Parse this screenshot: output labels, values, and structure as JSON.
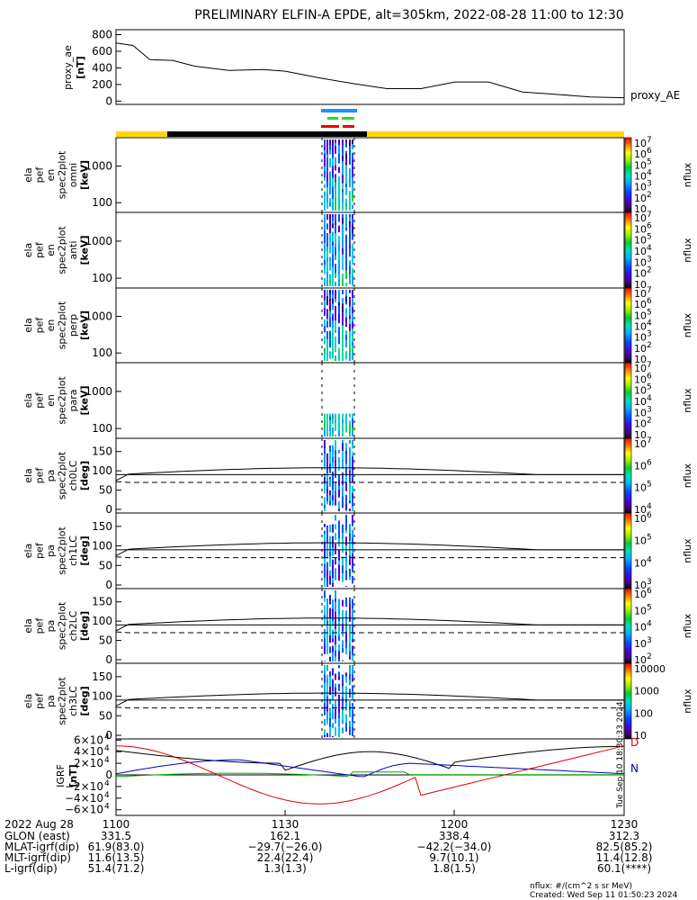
{
  "title": "PRELIMINARY ELFIN-A EPDE, alt=305km, 2022-08-28 11:00 to 12:30",
  "colors": {
    "sunlit": "#ffd700",
    "shadow": "#000000",
    "bar_blue": "#1e90ff",
    "bar_green": "#22dd22",
    "bar_red": "#ee0000"
  },
  "chart_data": [
    {
      "type": "line",
      "name": "proxy_ae",
      "ylabel": [
        "proxy_ae",
        "[nT]"
      ],
      "ylim": [
        -40,
        860
      ],
      "yticks": [
        "800",
        "600",
        "400",
        "200",
        "0"
      ],
      "x_minutes": [
        0,
        3,
        6,
        10,
        14,
        20,
        26,
        30,
        36,
        42,
        48,
        54,
        60,
        66,
        72,
        78,
        84,
        90
      ],
      "values": [
        700,
        670,
        500,
        490,
        420,
        370,
        380,
        360,
        280,
        210,
        150,
        150,
        230,
        230,
        110,
        80,
        50,
        40
      ],
      "legend": "proxy_AE"
    },
    {
      "type": "heatmap",
      "panels": [
        {
          "ylabel": [
            "ela",
            "pef",
            "en",
            "spec2plot",
            "omni",
            "[keV]"
          ],
          "yticks": [
            "1000",
            "100"
          ],
          "cbar": {
            "label": "nflux",
            "ticks": [
              "10",
              "10",
              "10",
              "10",
              "10",
              "10",
              "10"
            ],
            "exps": [
              "7",
              "6",
              "5",
              "4",
              "3",
              "2",
              ""
            ]
          }
        },
        {
          "ylabel": [
            "ela",
            "pef",
            "en",
            "spec2plot",
            "anti",
            "[keV]"
          ],
          "yticks": [
            "1000",
            "100"
          ],
          "cbar": {
            "label": "nflux",
            "ticks": [
              "10",
              "10",
              "10",
              "10",
              "10",
              "10",
              "10"
            ],
            "exps": [
              "7",
              "6",
              "5",
              "4",
              "3",
              "2",
              ""
            ]
          }
        },
        {
          "ylabel": [
            "ela",
            "pef",
            "en",
            "spec2plot",
            "perp",
            "[keV]"
          ],
          "yticks": [
            "1000",
            "100"
          ],
          "cbar": {
            "label": "nflux",
            "ticks": [
              "10",
              "10",
              "10",
              "10",
              "10",
              "10",
              "10"
            ],
            "exps": [
              "7",
              "6",
              "5",
              "4",
              "3",
              "2",
              ""
            ]
          }
        },
        {
          "ylabel": [
            "ela",
            "pef",
            "en",
            "spec2plot",
            "para",
            "[keV]"
          ],
          "yticks": [
            "1000",
            "100"
          ],
          "cbar": {
            "label": "nflux",
            "ticks": [
              "10",
              "10",
              "10",
              "10",
              "10",
              "10",
              "10"
            ],
            "exps": [
              "7",
              "6",
              "5",
              "4",
              "3",
              "2",
              ""
            ]
          }
        },
        {
          "ylabel": [
            "ela",
            "pef",
            "pa",
            "spec2plot",
            "ch0LC",
            "[deg]"
          ],
          "yticks": [
            "150",
            "100",
            "50",
            "0"
          ],
          "cbar": {
            "label": "nflux",
            "ticks": [
              "10",
              "10",
              "10",
              "10"
            ],
            "exps": [
              "7",
              "6",
              "5",
              "4"
            ]
          }
        },
        {
          "ylabel": [
            "ela",
            "pef",
            "pa",
            "spec2plot",
            "ch1LC",
            "[deg]"
          ],
          "yticks": [
            "150",
            "100",
            "50",
            "0"
          ],
          "cbar": {
            "label": "nflux",
            "ticks": [
              "10",
              "10",
              "10",
              "10"
            ],
            "exps": [
              "6",
              "5",
              "4",
              "3"
            ]
          }
        },
        {
          "ylabel": [
            "ela",
            "pef",
            "pa",
            "spec2plot",
            "ch2LC",
            "[deg]"
          ],
          "yticks": [
            "150",
            "100",
            "50",
            "0"
          ],
          "cbar": {
            "label": "nflux",
            "ticks": [
              "10",
              "10",
              "10",
              "10",
              "10"
            ],
            "exps": [
              "6",
              "5",
              "4",
              "3",
              "2"
            ]
          }
        },
        {
          "ylabel": [
            "ela",
            "pef",
            "pa",
            "spec2plot",
            "ch3LC",
            "[deg]"
          ],
          "yticks": [
            "150",
            "100",
            "50",
            "0"
          ],
          "cbar": {
            "label": "nflux",
            "ticks": [
              "10000",
              "1000",
              "100",
              "10"
            ],
            "exps": [
              "",
              "",
              "",
              ""
            ]
          }
        }
      ]
    },
    {
      "type": "line",
      "name": "IGRF",
      "ylabel": [
        "IGRF",
        "[nT]"
      ],
      "yticks": [
        "6×10",
        "4×10",
        "2×10",
        "0",
        "−2×10",
        "−4×10",
        "−6×10"
      ],
      "ytick_exp": "4",
      "ylim": [
        -62000,
        62000
      ],
      "legend": [
        "D",
        "N"
      ],
      "side_text": "Tue Sep 10 18:30:33 2024"
    }
  ],
  "axis": {
    "xticks": [
      "1100",
      "1130",
      "1200",
      "1230"
    ],
    "date_label": "2022 Aug 28",
    "rows": [
      {
        "label": "GLON (east)",
        "values": [
          "331.5",
          "162.1",
          "338.4",
          "312.3"
        ]
      },
      {
        "label": "MLAT-igrf(dip)",
        "values": [
          "61.9(83.0)",
          "−29.7(−26.0)",
          "−42.2(−34.0)",
          "82.5(85.2)"
        ]
      },
      {
        "label": "MLT-igrf(dip)",
        "values": [
          "11.6(13.5)",
          "22.4(22.4)",
          "9.7(10.1)",
          "11.4(12.8)"
        ]
      },
      {
        "label": "L-igrf(dip)",
        "values": [
          "51.4(71.2)",
          "1.3(1.3)",
          "1.8(1.5)",
          "60.1(****)"
        ]
      }
    ]
  },
  "footer": {
    "units": "nflux: #/(cm^2 s sr MeV)",
    "created": "Created: Wed Sep 11 01:50:23 2024"
  }
}
